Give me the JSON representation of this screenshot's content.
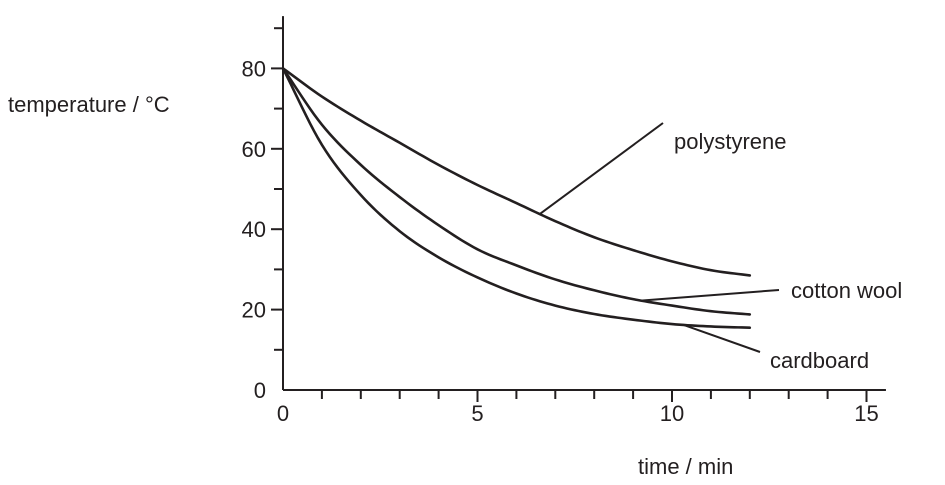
{
  "chart_data": {
    "type": "line",
    "title": "",
    "xlabel": "time / min",
    "ylabel": "temperature / °C",
    "xlim": [
      0,
      15.5
    ],
    "ylim": [
      0,
      93
    ],
    "x_major_ticks": [
      0,
      5,
      10,
      15
    ],
    "x_minor_step": 1,
    "y_major_ticks": [
      0,
      20,
      40,
      60,
      80
    ],
    "y_minor_step": 10,
    "x_tick_labels": [
      "0",
      "5",
      "10",
      "15"
    ],
    "y_tick_labels": [
      "0",
      "20",
      "40",
      "60",
      "80"
    ],
    "grid": false,
    "legend": "none",
    "series": [
      {
        "name": "polystyrene",
        "x": [
          0,
          1,
          2,
          3,
          4,
          5,
          6,
          7,
          8,
          9,
          10,
          11,
          12
        ],
        "y": [
          80,
          73,
          67,
          61.5,
          56,
          51,
          46.5,
          42,
          38,
          34.8,
          32,
          29.8,
          28.5
        ]
      },
      {
        "name": "cotton wool",
        "x": [
          0,
          1,
          2,
          3,
          4,
          5,
          6,
          7,
          8,
          9,
          10,
          11,
          12
        ],
        "y": [
          80,
          66,
          56,
          48,
          41,
          35,
          31,
          27.5,
          24.8,
          22.6,
          21,
          19.6,
          18.8
        ]
      },
      {
        "name": "cardboard",
        "x": [
          0,
          1,
          2,
          3,
          4,
          5,
          6,
          7,
          8,
          9,
          10,
          11,
          12
        ],
        "y": [
          80,
          61,
          48.5,
          39.5,
          33,
          28,
          24,
          21,
          18.9,
          17.5,
          16.4,
          15.8,
          15.5
        ]
      }
    ],
    "annotations": [
      {
        "text": "polystyrene",
        "series": "polystyrene",
        "at_x": 6.6
      },
      {
        "text": "cotton wool",
        "series": "cotton wool",
        "at_x": 9.2
      },
      {
        "text": "cardboard",
        "series": "cardboard",
        "at_x": 10.3
      }
    ]
  }
}
